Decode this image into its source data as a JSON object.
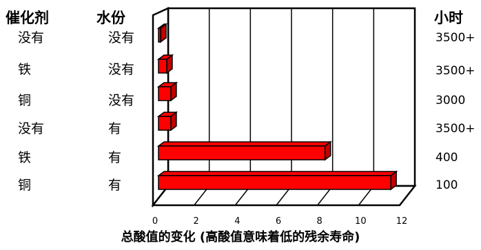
{
  "headers": {
    "catalyst": "催化剂",
    "water": "水份",
    "hours": "小时"
  },
  "rows": [
    {
      "catalyst": "没有",
      "water": "没有",
      "hours": "3500+"
    },
    {
      "catalyst": "铁",
      "water": "没有",
      "hours": "3500+"
    },
    {
      "catalyst": "铜",
      "water": "没有",
      "hours": "3000"
    },
    {
      "catalyst": "没有",
      "water": "有",
      "hours": "3500+"
    },
    {
      "catalyst": "铁",
      "water": "有",
      "hours": "400"
    },
    {
      "catalyst": "铜",
      "water": "有",
      "hours": "100"
    }
  ],
  "chart_data": {
    "type": "bar",
    "orientation": "horizontal",
    "style": "3d",
    "categories": [
      "没有 / 没有",
      "铁 / 没有",
      "铜 / 没有",
      "没有 / 有",
      "铁 / 有",
      "铜 / 有"
    ],
    "values": [
      0.1,
      0.4,
      0.6,
      0.6,
      8.1,
      11.3
    ],
    "xlabel": "总酸值的变化 (高酸值意味着低的残余寿命)",
    "xlim": [
      0,
      12
    ],
    "xticks": [
      "0",
      "2",
      "4",
      "6",
      "8",
      "10",
      "12"
    ],
    "grid": true,
    "bar_color": "#ff0000",
    "bar_shade_color": "#c00000"
  }
}
